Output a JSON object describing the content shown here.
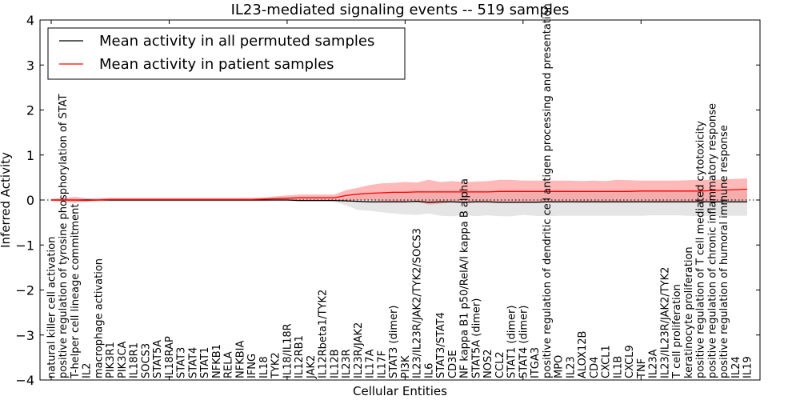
{
  "chart_data": {
    "type": "line",
    "title": "IL23-mediated signaling events -- 519 samples",
    "xlabel": "Cellular Entities",
    "ylabel": "Inferred Activity",
    "ylim": [
      -4,
      4
    ],
    "yticks": [
      "4",
      "3",
      "2",
      "1",
      "0",
      "−1",
      "−2",
      "−3",
      "−4"
    ],
    "ytick_values": [
      4,
      3,
      2,
      1,
      0,
      -1,
      -2,
      -3,
      -4
    ],
    "grid": false,
    "zero_line": "dotted",
    "legend": {
      "placement": "top-left",
      "entries": [
        {
          "label": "Mean activity in all permuted samples",
          "color": "#000000"
        },
        {
          "label": "Mean activity in patient samples",
          "color": "#ff0000"
        }
      ]
    },
    "categories": [
      "natural killer cell activation",
      "positive regulation of tyrosine phosphorylation of STAT",
      "T-helper cell lineage commitment",
      "IL2",
      "macrophage activation",
      "PIK3R1",
      "PIK3CA",
      "IL18R1",
      "SOCS3",
      "STAT5A",
      "IL18RAP",
      "STAT3",
      "STAT4",
      "STAT1",
      "NFKB1",
      "RELA",
      "NFKBIA",
      "IFNG",
      "IL18",
      "TYK2",
      "IL18/IL18R",
      "IL12RB1",
      "JAK2",
      "IL12Rbeta1/TYK2",
      "IL12B",
      "IL23R",
      "IL23R/JAK2",
      "IL17A",
      "IL17F",
      "STAT3 (dimer)",
      "PI3K",
      "IL23/IL23R/JAK2/TYK2/SOCS3",
      "IL6",
      "STAT3/STAT4",
      "CD3E",
      "NF kappa B1 p50/RelA/I kappa B alpha",
      "STAT5A (dimer)",
      "NOS2",
      "CCL2",
      "STAT1 (dimer)",
      "STAT4 (dimer)",
      "ITGA3",
      "positive regulation of dendritic cell antigen processing and presentation",
      "MPO",
      "IL23",
      "ALOX12B",
      "CD4",
      "CXCL1",
      "IL1B",
      "CXCL9",
      "TNF",
      "IL23A",
      "IL23/IL23R/JAK2/TYK2",
      "T cell proliferation",
      "keratinocyte proliferation",
      "positive regulation of T cell mediated cytotoxicity",
      "positive regulation of chronic inflammatory response",
      "positive regulation of humoral immune response",
      "IL24",
      "IL19"
    ],
    "series": [
      {
        "name": "Mean activity in all permuted samples",
        "color": "#000000",
        "band_color": "#cccccc",
        "values": [
          0,
          0,
          0,
          0,
          0,
          0,
          0,
          0,
          0,
          0,
          0,
          0,
          0,
          0,
          0,
          0,
          0,
          0,
          0,
          0,
          0,
          -0.01,
          -0.01,
          -0.01,
          -0.01,
          -0.02,
          -0.03,
          -0.04,
          -0.04,
          -0.04,
          -0.04,
          -0.03,
          -0.05,
          -0.04,
          -0.04,
          -0.05,
          -0.04,
          -0.04,
          -0.05,
          -0.05,
          -0.05,
          -0.05,
          -0.04,
          -0.04,
          -0.04,
          -0.04,
          -0.04,
          -0.04,
          -0.04,
          -0.04,
          -0.04,
          -0.04,
          -0.04,
          -0.04,
          -0.04,
          -0.04,
          -0.04,
          -0.04,
          -0.04,
          -0.04
        ],
        "lower": [
          -0.02,
          -0.03,
          -0.03,
          -0.03,
          -0.03,
          -0.03,
          -0.03,
          -0.03,
          -0.03,
          -0.03,
          -0.03,
          -0.03,
          -0.03,
          -0.03,
          -0.03,
          -0.03,
          -0.03,
          -0.03,
          -0.03,
          -0.03,
          -0.03,
          -0.03,
          -0.03,
          -0.03,
          -0.04,
          -0.12,
          -0.22,
          -0.24,
          -0.27,
          -0.3,
          -0.32,
          -0.33,
          -0.3,
          -0.35,
          -0.36,
          -0.33,
          -0.36,
          -0.34,
          -0.36,
          -0.36,
          -0.33,
          -0.35,
          -0.36,
          -0.35,
          -0.35,
          -0.35,
          -0.35,
          -0.35,
          -0.35,
          -0.35,
          -0.35,
          -0.34,
          -0.34,
          -0.34,
          -0.35,
          -0.36,
          -0.35,
          -0.35,
          -0.35,
          -0.35
        ],
        "upper": [
          0.02,
          0.03,
          0.03,
          0.03,
          0.03,
          0.03,
          0.03,
          0.03,
          0.03,
          0.03,
          0.03,
          0.03,
          0.03,
          0.03,
          0.03,
          0.03,
          0.03,
          0.03,
          0.03,
          0.03,
          0.03,
          0.03,
          0.03,
          0.03,
          0.03,
          0.05,
          0.1,
          0.14,
          0.17,
          0.2,
          0.2,
          0.22,
          0.2,
          0.22,
          0.22,
          0.2,
          0.22,
          0.2,
          0.2,
          0.22,
          0.2,
          0.2,
          0.2,
          0.22,
          0.2,
          0.2,
          0.2,
          0.2,
          0.2,
          0.22,
          0.22,
          0.22,
          0.22,
          0.2,
          0.22,
          0.2,
          0.2,
          0.2,
          0.2,
          0.2
        ]
      },
      {
        "name": "Mean activity in patient samples",
        "color": "#ff0000",
        "band_color": "#ff7f7f",
        "values": [
          0,
          0,
          0,
          -0.01,
          0,
          0.01,
          0.01,
          0.01,
          0.01,
          0.01,
          0.01,
          0.01,
          0.01,
          0.01,
          0.01,
          0.01,
          0.01,
          0.01,
          0.02,
          0.03,
          0.04,
          0.05,
          0.05,
          0.05,
          0.05,
          0.1,
          0.13,
          0.15,
          0.16,
          0.17,
          0.17,
          0.18,
          0.18,
          0.18,
          0.18,
          0.18,
          0.18,
          0.18,
          0.19,
          0.19,
          0.19,
          0.19,
          0.19,
          0.19,
          0.19,
          0.19,
          0.19,
          0.19,
          0.19,
          0.19,
          0.2,
          0.2,
          0.2,
          0.2,
          0.2,
          0.2,
          0.21,
          0.22,
          0.23,
          0.24
        ],
        "lower": [
          -0.02,
          -0.04,
          -0.06,
          -0.03,
          -0.02,
          -0.02,
          -0.02,
          -0.02,
          -0.02,
          -0.02,
          -0.02,
          -0.02,
          -0.02,
          -0.02,
          -0.02,
          -0.02,
          -0.02,
          -0.02,
          -0.02,
          -0.01,
          -0.01,
          -0.01,
          -0.01,
          -0.01,
          -0.01,
          -0.01,
          0,
          0,
          -0.02,
          -0.03,
          -0.05,
          -0.04,
          -0.1,
          -0.08,
          -0.05,
          -0.06,
          -0.03,
          -0.03,
          -0.04,
          -0.04,
          -0.04,
          -0.04,
          -0.04,
          -0.04,
          -0.05,
          -0.05,
          -0.05,
          -0.06,
          -0.04,
          -0.04,
          -0.04,
          -0.04,
          -0.04,
          -0.04,
          -0.03,
          -0.03,
          -0.03,
          -0.02,
          -0.02,
          -0.02
        ],
        "upper": [
          0.02,
          0.05,
          0.07,
          0.04,
          0.04,
          0.05,
          0.05,
          0.05,
          0.05,
          0.05,
          0.05,
          0.05,
          0.05,
          0.05,
          0.05,
          0.05,
          0.05,
          0.05,
          0.06,
          0.08,
          0.1,
          0.12,
          0.12,
          0.12,
          0.12,
          0.22,
          0.27,
          0.33,
          0.37,
          0.38,
          0.4,
          0.39,
          0.45,
          0.4,
          0.42,
          0.4,
          0.41,
          0.42,
          0.45,
          0.45,
          0.43,
          0.43,
          0.43,
          0.43,
          0.43,
          0.42,
          0.43,
          0.42,
          0.45,
          0.44,
          0.43,
          0.43,
          0.43,
          0.43,
          0.44,
          0.45,
          0.45,
          0.46,
          0.47,
          0.48
        ]
      }
    ]
  }
}
